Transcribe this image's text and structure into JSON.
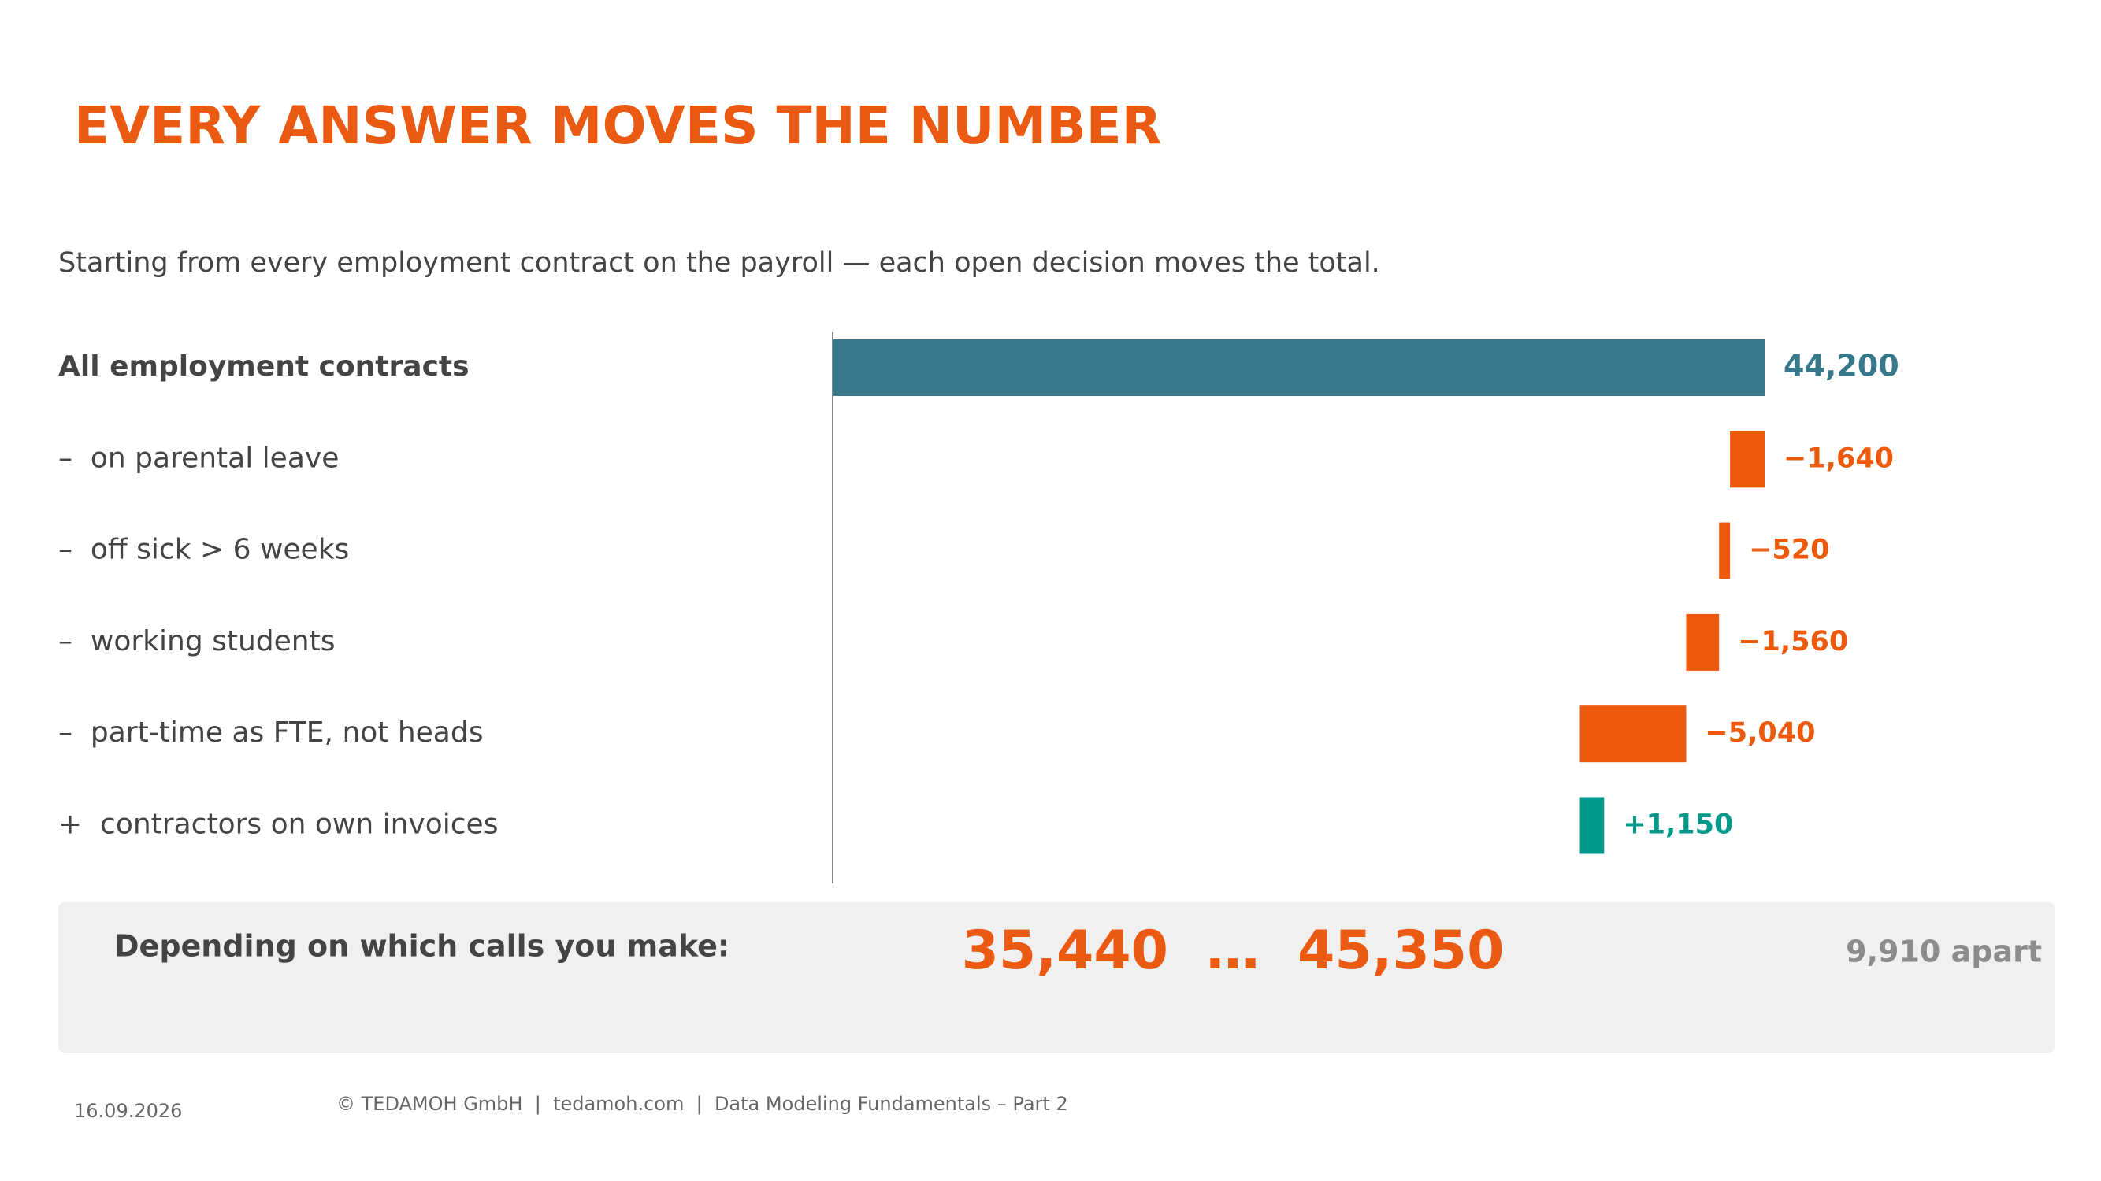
{
  "title": "EVERY ANSWER MOVES THE NUMBER",
  "subtitle": "Starting from every employment contract on the payroll — each open decision moves the total.",
  "chart_data": {
    "type": "waterfall",
    "categories": [
      "All employment contracts",
      "–  on parental leave",
      "–  off sick > 6 weeks",
      "–  working students",
      "–  part-time as FTE, not heads",
      "+  contractors on own invoices"
    ],
    "values": [
      44200,
      -1640,
      -520,
      -1560,
      -5040,
      1150
    ],
    "value_labels": [
      "44,200",
      "−1,640",
      "−520",
      "−1,560",
      "−5,040",
      "+1,150"
    ],
    "colors": {
      "total": "#37798a",
      "decrease": "#ec5a0e",
      "increase": "#00998a"
    }
  },
  "summary": {
    "label": "Depending on which calls you make:",
    "low": "35,440",
    "separator": "…",
    "high": "45,350",
    "gap": "9,910 apart"
  },
  "footer": {
    "date": "16.09.2026",
    "text": "© TEDAMOH GmbH  |  tedamoh.com  |  Data Modeling Fundamentals – Part 2"
  }
}
